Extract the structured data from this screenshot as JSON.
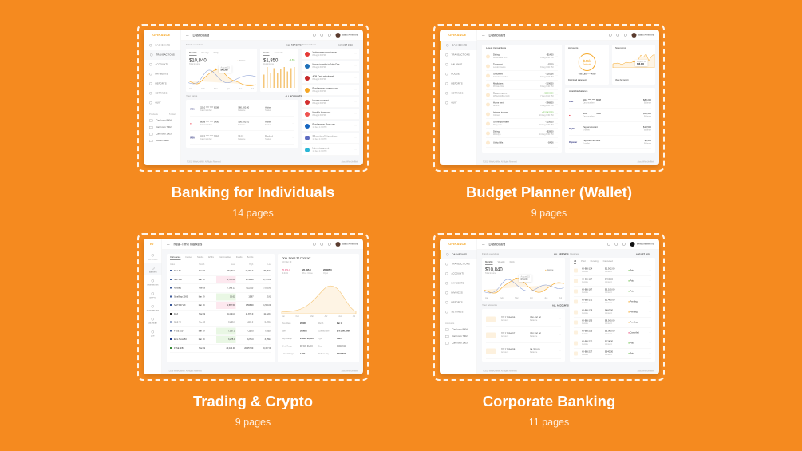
{
  "colors": {
    "background": "#F58A1F",
    "accent": "#F5A623",
    "line_blue": "#8fa3d6"
  },
  "products": [
    {
      "title": "Banking for Individuals",
      "pages": "14 pages"
    },
    {
      "title": "Budget Planner (Wallet)",
      "pages": "9 pages"
    },
    {
      "title": "Trading & Crypto",
      "pages": "9 pages"
    },
    {
      "title": "Corporate Banking",
      "pages": "11 pages"
    }
  ],
  "banking": {
    "logo": "IOFINANCE",
    "title": "Dashboard",
    "user": "Barry Armstrong",
    "nav": [
      "Dashboard",
      "Transactions",
      "Accounts",
      "Payments",
      "Reports",
      "Settings",
      "Quit"
    ],
    "products_label": "Products",
    "products_count": "5 total",
    "product_items": [
      "Card xxxx 8004",
      "Card xxxx 7802",
      "Card xxxx 1903",
      "Bitcoin wallet"
    ],
    "funds_label": "Funds overview",
    "all_reports": "ALL REPORTS",
    "tabs": [
      "Monthly",
      "Weekly",
      "Daily"
    ],
    "total": "$10,840",
    "total_label": "Total income",
    "legend": "Income",
    "tooltip_date": "August 15",
    "tooltip_value": "$48,300",
    "months": [
      "Jan",
      "Feb",
      "Mar",
      "Apr",
      "Jun",
      "Jul"
    ],
    "cards_tabs": [
      "Cards",
      "Accounts"
    ],
    "avg": "$1,850",
    "avg_label": "Avg income",
    "change": "+4.5%",
    "your_cards": "Your cards",
    "all_accounts": "ALL ACCOUNTS",
    "cards": [
      {
        "brand": "VISA",
        "number": "3210 **** **** 8008",
        "number_label": "Card number",
        "balance": "$80,300.30",
        "balance_label": "Balance",
        "status": "Active",
        "status_label": "Status"
      },
      {
        "brand": "MC",
        "number": "8008 **** **** 5400",
        "number_label": "Card number",
        "balance": "$56,400.10",
        "balance_label": "Balance",
        "status": "Active",
        "status_label": "Status"
      },
      {
        "brand": "VISA",
        "number": "3340 **** **** 9018",
        "number_label": "Card number",
        "balance": "$0.00",
        "balance_label": "Balance",
        "status": "Blocked",
        "status_label": "Status"
      }
    ],
    "transactions_label": "Transactions",
    "month": "AUGUST 2018",
    "transactions": [
      {
        "name": "Vodafone account top up",
        "date": "8 Aug 1:30 PM",
        "color": "#e53935"
      },
      {
        "name": "Money transfer to John Doe",
        "date": "8 Aug 1:30 PM",
        "color": "#1e6fb8"
      },
      {
        "name": "ATM Cash withdrawal",
        "date": "8 Aug 1:30 PM",
        "color": "#c62828"
      },
      {
        "name": "Purchase on Amazon.com",
        "date": "8 Aug 1:30 PM",
        "color": "#f5a623"
      },
      {
        "name": "Income payment",
        "date": "8 Aug 1:30 PM",
        "color": "#d32f2f"
      },
      {
        "name": "Monthly home rent",
        "date": "8 Aug 1:30 PM",
        "color": "#ef5350"
      },
      {
        "name": "Purchase on Ebay.com",
        "date": "10 Aug 1:30 PM",
        "color": "#1565c0"
      },
      {
        "name": "Silhouette of hit purchase",
        "date": "10 Aug 1:30 PM",
        "color": "#5c6bc0"
      },
      {
        "name": "Internet payment",
        "date": "10 Aug 1:30 PM",
        "color": "#29b6d6"
      }
    ],
    "footer_left": "© 2018 WhiteUntilMel. All Rights Reserved",
    "footer_right": "About WhiteUntilMel"
  },
  "wallet": {
    "logo": "IOFINANCE",
    "title": "Dashboard",
    "user": "Barry Armstrong",
    "nav": [
      "Dashboard",
      "Transactions",
      "Balance",
      "Budget",
      "Reports",
      "Settings",
      "Quit"
    ],
    "latest_label": "Latest transactions",
    "transactions": [
      {
        "name": "Dining",
        "sub": "Mcdonalds LLC",
        "amount": "- $14.00",
        "date": "8 Aug 2:30 PM"
      },
      {
        "name": "Transport",
        "sub": "London metro",
        "amount": "- $2.10",
        "date": "8 Aug 3:00 PM"
      },
      {
        "name": "Groceries",
        "sub": "Carrefour market",
        "amount": "- $281.36",
        "date": "8 Aug 3:15 PM"
      },
      {
        "name": "Medicines",
        "sub": "Private clinic",
        "amount": "- $196.00",
        "date": "8 Aug 3:40 PM"
      },
      {
        "name": "Salary income",
        "sub": "WhiteUntilMel LLC",
        "amount": "+ $3,800.00",
        "date": "7 Aug 9:10 PM"
      },
      {
        "name": "Home rent",
        "sub": "Airbnb",
        "amount": "- $968.00",
        "date": "8 Aug 1:00 PM"
      },
      {
        "name": "Interest income",
        "sub": "Citibank",
        "amount": "+ $11,432.30",
        "date": "13 Aug 3:30 PM"
      },
      {
        "name": "Online purchase",
        "sub": "Ebay.com",
        "amount": "- $256.00",
        "date": "13 Aug 3:30 PM"
      },
      {
        "name": "Dining",
        "sub": "Wendy's",
        "amount": "- $28.00",
        "date": "14 Aug 8:30 PM"
      },
      {
        "name": "Utility bills",
        "sub": "",
        "amount": "- $4.26",
        "date": ""
      }
    ],
    "accounts_label": "Accounts",
    "profit": "$46k",
    "profit_label": "Total profit",
    "card": "Visa Card **** 4090",
    "download": "Download statement",
    "spendings_label": "Spendings",
    "tooltip_date": "August 15",
    "tooltip_value": "$48,300",
    "full_report": "View full report",
    "balance_label": "Available balance",
    "balances": [
      {
        "brand": "VISA",
        "name": "3210 **** **** 8008",
        "sub": "Card number",
        "amount": "$88,200",
        "amount_label": "Balance"
      },
      {
        "brand": "MC",
        "name": "4008 **** **** 5400",
        "sub": "Card number",
        "amount": "$56,400",
        "amount_label": "Balance"
      },
      {
        "brand": "PayPal",
        "name": "Paypal account",
        "sub": "E-wallet",
        "amount": "$18,500",
        "amount_label": "Balance"
      },
      {
        "brand": "Payoneer",
        "name": "Payoneer account",
        "sub": "E-wallet",
        "amount": "$5,400",
        "amount_label": "Balance"
      }
    ],
    "footer_left": "© 2018 WhiteUntilMel. All Rights Reserved",
    "footer_right": "About WhiteUntilMel"
  },
  "trading": {
    "logo": "IO",
    "title": "Real-Time Markets",
    "user": "Barry Armstrong",
    "nav": [
      "Dashboard",
      "Markets",
      "Orderbooks",
      "Crypto",
      "Tech Analysis",
      "Calendar",
      "Quit"
    ],
    "tabs": [
      "Currencies",
      "Indices",
      "Stocks",
      "ETFs",
      "Commodities",
      "Funds",
      "Bonds"
    ],
    "columns": [
      "Index",
      "Month",
      "Last",
      "High",
      "Low"
    ],
    "rows": [
      {
        "flag": "#3c5a99",
        "cells": [
          "Dow 30",
          "Mar 19",
          "25,090.0",
          "25,090.0",
          "25,054.0"
        ],
        "hl": ""
      },
      {
        "flag": "#3c5a99",
        "cells": [
          "S&P 500",
          "Mar 19",
          "2,790.00",
          "2,790.00",
          "2,785.00"
        ],
        "hl": "red"
      },
      {
        "flag": "#3c5a99",
        "cells": [
          "Nasdaq",
          "Mar 19",
          "7,096.13",
          "7,122.13",
          "7,075.63"
        ],
        "hl": ""
      },
      {
        "flag": "#3c5a99",
        "cells": [
          "SmallCap 2000",
          "Mar 19",
          "15.63",
          "15.67",
          "15.62"
        ],
        "hl": "green"
      },
      {
        "flag": "#3c5a99",
        "cells": [
          "S&P 500 VIX",
          "Mar 19",
          "1,567.50",
          "1,595.00",
          "1,560.00"
        ],
        "hl": "red"
      },
      {
        "flag": "#222222",
        "cells": [
          "DAX",
          "Mar 19",
          "11,824.0",
          "11,870.0",
          "11,822.0"
        ],
        "hl": ""
      },
      {
        "flag": "#3c5a99",
        "cells": [
          "CAC 40",
          "Mar 19",
          "5,225.0",
          "5,225.0",
          "5,195.2"
        ],
        "hl": ""
      },
      {
        "flag": "#3c5a99",
        "cells": [
          "FTSE 100",
          "Mar 19",
          "7,137.0",
          "7,138.0",
          "7,092.0"
        ],
        "hl": "green"
      },
      {
        "flag": "#1f3b8a",
        "cells": [
          "Euro Stoxx 50",
          "Mar 19",
          "3,275.0",
          "3,275.0",
          "3,259.0"
        ],
        "hl": "green"
      },
      {
        "flag": "#3a8a3a",
        "cells": [
          "FTSE MIB",
          "Mar 19",
          "20,440.00",
          "20,457.00",
          "20,337.00"
        ],
        "hl": ""
      }
    ],
    "contract_title": "Dow Jones 30 Contract",
    "contract_sub": "DJI Mar 19",
    "stat_main": "25,971.0",
    "stat_main_sub": "-0.43%",
    "stat2": "26,095.0",
    "stat2_label": "Prev. Close",
    "stat3": "26,085.0",
    "stat3_label": "Open",
    "months": [
      "Jan",
      "Feb",
      "Mar",
      "Apr",
      "Jun",
      "Jul"
    ],
    "details": [
      [
        "Prev. Close",
        "26,095",
        "Month",
        "Mar 19"
      ],
      [
        "Open",
        "26,085.0",
        "Contract Size",
        "$5 x Dow Jones"
      ],
      [
        "Day's Range",
        "25,930 - 26,095.0",
        "Type",
        "Cash"
      ],
      [
        "52 wk Range",
        "21,452 - 26,956",
        "Day",
        "03/22/2019"
      ],
      [
        "1-Year Change",
        "2.77%",
        "Rollover Day",
        "03/22/2019"
      ]
    ],
    "footer_left": "© 2018 WhiteUntilMel. All Rights Reserved",
    "footer_right": "About WhiteUntilMel"
  },
  "corporate": {
    "logo": "IOFINANCE",
    "title": "Dashboard",
    "user": "WhiteUntilMel Inc.",
    "nav": [
      "Dashboard",
      "Transactions",
      "Accounts",
      "Payments",
      "Invoices",
      "Reports",
      "Settings"
    ],
    "accounts_label": "Accounts",
    "account_items": [
      "Card xxxx 8004",
      "Card xxxx 7802",
      "Card xxxx 1903"
    ],
    "funds_label": "Funds overview",
    "all_reports": "ALL REPORTS",
    "tabs": [
      "Monthly",
      "Weekly",
      "Daily"
    ],
    "total": "$10,840",
    "total_label": "Total income",
    "legend": "Income",
    "tooltip_date": "August 15",
    "tooltip_value": "$48,300",
    "months": [
      "Jan",
      "Feb",
      "Mar",
      "Apr",
      "Jun",
      "Jul"
    ],
    "your_accounts": "Your accounts",
    "all_accounts": "ALL ACCOUNTS",
    "accounts": [
      {
        "number": "**** 12034856",
        "label": "Account",
        "balance": "$56,400.00",
        "balance_label": "Balance"
      },
      {
        "number": "**** 12034857",
        "label": "Account",
        "balance": "$50,500.00",
        "balance_label": "Balance"
      },
      {
        "number": "**** 12034858",
        "label": "Account",
        "balance": "$4,700.00",
        "balance_label": "Balance"
      }
    ],
    "invoices_label": "Invoices",
    "month": "AUGUST 2018",
    "invoice_tabs": [
      "All",
      "Paid",
      "Pending",
      "Cancelled"
    ],
    "invoices": [
      {
        "id": "IO-BN-124",
        "sub": "Invoice",
        "amount": "$1,542.00",
        "amount_label": "Amount",
        "status": "Paid",
        "color": "#6cc04a"
      },
      {
        "id": "IO-BN-127",
        "sub": "Invoice",
        "amount": "$456.30",
        "amount_label": "Amount",
        "status": "Paid",
        "color": "#6cc04a"
      },
      {
        "id": "IO-BN-167",
        "sub": "Invoice",
        "amount": "$6,100.00",
        "amount_label": "Amount",
        "status": "Paid",
        "color": "#6cc04a"
      },
      {
        "id": "IO-BN-172",
        "sub": "Invoice",
        "amount": "$2,400.00",
        "amount_label": "Amount",
        "status": "Pending",
        "color": "#f5a623"
      },
      {
        "id": "IO-BN-178",
        "sub": "Invoice",
        "amount": "$460.00",
        "amount_label": "Amount",
        "status": "Pending",
        "color": "#f5a623"
      },
      {
        "id": "IO-BN-196",
        "sub": "Invoice",
        "amount": "$8,540.00",
        "amount_label": "Amount",
        "status": "Pending",
        "color": "#f5a623"
      },
      {
        "id": "IO-BN-213",
        "sub": "Invoice",
        "amount": "$3,900.00",
        "amount_label": "Amount",
        "status": "Cancelled",
        "color": "#e8497a"
      },
      {
        "id": "IO-BN-230",
        "sub": "Invoice",
        "amount": "$124.30",
        "amount_label": "Amount",
        "status": "Paid",
        "color": "#6cc04a"
      },
      {
        "id": "IO-BN-237",
        "sub": "Invoice",
        "amount": "$340.30",
        "amount_label": "Amount",
        "status": "Paid",
        "color": "#6cc04a"
      }
    ],
    "footer_left": "© 2018 WhiteUntilMel. All Rights Reserved",
    "footer_right": "About WhiteUntilMel"
  }
}
